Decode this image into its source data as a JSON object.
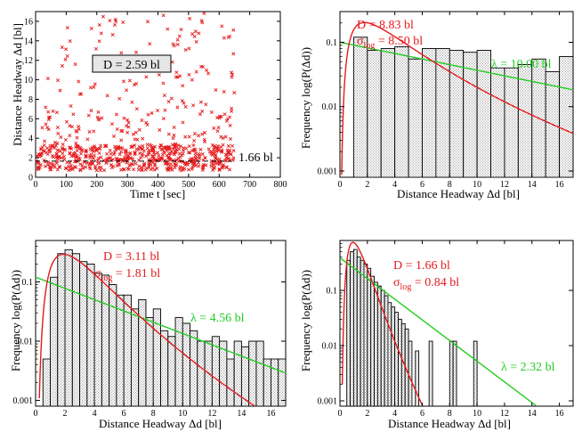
{
  "chart_data": [
    {
      "type": "scatter",
      "xlabel": "Time t [sec]",
      "ylabel": "Distance Headway Δd [bl]",
      "xlim": [
        0,
        800
      ],
      "ylim": [
        0,
        17
      ],
      "xticks": [
        0,
        100,
        200,
        300,
        400,
        500,
        600,
        700,
        800
      ],
      "yticks": [
        0,
        2,
        4,
        6,
        8,
        10,
        12,
        14,
        16
      ],
      "marker": "x",
      "color": "#e41a1c",
      "point_count_approx": 700,
      "point_generation": "dense band 1-3 bl over 0-650 sec, sparser points up to 17 bl",
      "points": [],
      "annotations": [
        {
          "text": "D = 2.59 bl",
          "x": 195,
          "y": 12.2,
          "boxed": true
        },
        {
          "text": "1.66 bl",
          "x": 640,
          "y": 1.66,
          "dashed_line": true
        }
      ]
    },
    {
      "type": "bar",
      "xlabel": "Distance Headway Δd [bl]",
      "ylabel": "Frequency log(P(Δd))",
      "yscale": "log",
      "xlim": [
        0,
        17
      ],
      "ylim": [
        0.0008,
        0.3
      ],
      "xticks": [
        0,
        2,
        4,
        6,
        8,
        10,
        12,
        14,
        16
      ],
      "yticks": [
        0.001,
        0.01,
        0.1
      ],
      "ytick_labels": [
        "0.001",
        "0.01",
        "0.1"
      ],
      "bin_width": 1,
      "bin_starts": [
        1,
        2,
        3,
        4,
        5,
        6,
        7,
        8,
        9,
        10,
        11,
        12,
        13,
        14,
        15,
        16
      ],
      "values": [
        0.12,
        0.075,
        0.08,
        0.085,
        0.055,
        0.08,
        0.08,
        0.075,
        0.07,
        0.075,
        0.04,
        0.04,
        0.045,
        0.055,
        0.035,
        0.06
      ],
      "lognormal_fit": {
        "D": 8.83,
        "sigma": 8.5,
        "mu": 1.22,
        "s": 0.8,
        "scale": 1.0,
        "color": "#e41a1c"
      },
      "exponential_fit": {
        "lambda": 10.0,
        "scale": 1.0,
        "color": "#22cc22"
      },
      "fit_text": {
        "D": "D = 8.83 bl",
        "sigma_symbol": "σ",
        "sigma_sub": "log",
        "sigma_value": " = 8.50 bl",
        "lambda": "λ = 10.00 bl"
      }
    },
    {
      "type": "bar",
      "xlabel": "Distance Headway Δd [bl]",
      "ylabel": "Frequency log(P(Δd))",
      "yscale": "log",
      "xlim": [
        0,
        17
      ],
      "ylim": [
        0.0008,
        0.5
      ],
      "xticks": [
        0,
        2,
        4,
        6,
        8,
        10,
        12,
        14,
        16
      ],
      "yticks": [
        0.001,
        0.01,
        0.1
      ],
      "ytick_labels": [
        "0.001",
        "0.01",
        "0.1"
      ],
      "bin_width": 0.5,
      "bin_starts": [
        0.5,
        1.0,
        1.5,
        2.0,
        2.5,
        3.0,
        3.5,
        4.0,
        4.5,
        5.0,
        5.5,
        6.0,
        6.5,
        7.0,
        7.5,
        8.0,
        8.5,
        9.0,
        9.5,
        10.0,
        10.5,
        11.0,
        11.5,
        12.0,
        12.5,
        13.0,
        13.5,
        14.0,
        14.5,
        15.0,
        15.5,
        16.0,
        16.5
      ],
      "values": [
        0.005,
        0.12,
        0.3,
        0.35,
        0.3,
        0.22,
        0.2,
        0.14,
        0.13,
        0.09,
        0.06,
        0.06,
        0.035,
        0.05,
        0.025,
        0.035,
        0.015,
        0.012,
        0.025,
        0.02,
        0.015,
        0.01,
        0.01,
        0.012,
        0.01,
        0.005,
        0.01,
        0.008,
        0.01,
        0.01,
        0.005,
        0.005,
        0.005
      ],
      "lognormal_fit": {
        "D": 3.11,
        "sigma": 1.81,
        "mu": 1.0,
        "s": 0.6,
        "scale": 1.0,
        "color": "#e41a1c"
      },
      "exponential_fit": {
        "lambda": 4.56,
        "scale": 0.55,
        "color": "#22cc22"
      },
      "fit_text": {
        "D": "D = 3.11 bl",
        "sigma_symbol": "σ",
        "sigma_sub": "log",
        "sigma_value": " = 1.81 bl",
        "lambda": "λ = 4.56 bl"
      }
    },
    {
      "type": "bar",
      "xlabel": "Distance Headway Δd [bl]",
      "ylabel": "Frequency log(P(Δd))",
      "yscale": "log",
      "xlim": [
        0,
        17
      ],
      "ylim": [
        0.0008,
        0.8
      ],
      "xticks": [
        0,
        2,
        4,
        6,
        8,
        10,
        12,
        14,
        16
      ],
      "yticks": [
        0.001,
        0.01,
        0.1
      ],
      "ytick_labels": [
        "0.001",
        "0.01",
        "0.1"
      ],
      "bin_width": 0.25,
      "bin_starts": [
        0.5,
        0.75,
        1.0,
        1.25,
        1.5,
        1.75,
        2.0,
        2.25,
        2.5,
        2.75,
        3.0,
        3.25,
        3.5,
        3.75,
        4.0,
        4.25,
        4.5,
        4.75,
        5.0,
        5.5,
        6.5,
        8.0,
        8.25,
        9.75
      ],
      "values": [
        0.35,
        0.5,
        0.55,
        0.4,
        0.35,
        0.3,
        0.25,
        0.18,
        0.14,
        0.12,
        0.1,
        0.08,
        0.06,
        0.05,
        0.04,
        0.03,
        0.025,
        0.02,
        0.012,
        0.008,
        0.012,
        0.012,
        0.012,
        0.012
      ],
      "lognormal_fit": {
        "D": 1.66,
        "sigma": 0.84,
        "mu": 0.2,
        "s": 0.5,
        "scale": 1.0,
        "color": "#e41a1c"
      },
      "exponential_fit": {
        "lambda": 2.32,
        "scale": 0.9,
        "color": "#22cc22"
      },
      "fit_text": {
        "D": "D = 1.66 bl",
        "sigma_symbol": "σ",
        "sigma_sub": "log",
        "sigma_value": " = 0.84 bl",
        "lambda": "λ = 2.32 bl"
      }
    }
  ]
}
